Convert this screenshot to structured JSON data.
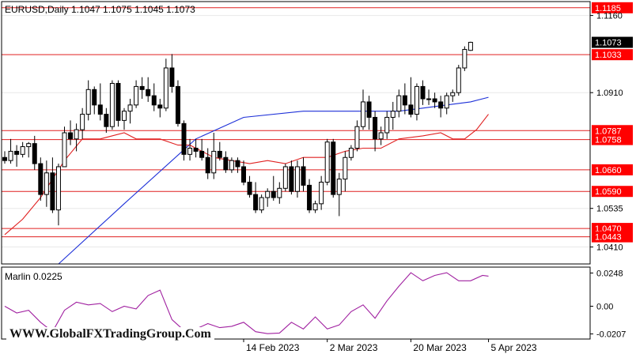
{
  "chart_data": [
    {
      "type": "candlestick",
      "title": "EURUSD,Daily  1.1047  1.1075  1.1045  1.1073",
      "symbol": "EURUSD",
      "timeframe": "Daily",
      "header_values": [
        "1.1047",
        "1.1075",
        "1.1045",
        "1.1073"
      ],
      "ylim": [
        1.0355,
        1.1205
      ],
      "y_ticks": [
        "1.1160",
        "1.0910",
        "1.0535",
        "1.0410"
      ],
      "x_tick_labels": [
        "14 Feb 2023",
        "2 Mar 2023",
        "20 Mar 2023",
        "5 Apr 2023"
      ],
      "x_tick_index": [
        40,
        54,
        68,
        81
      ],
      "current_price": "1.1073",
      "levels": [
        "1.1185",
        "1.1033",
        "1.0787",
        "1.0758",
        "1.0660",
        "1.0590",
        "1.0470",
        "1.0443"
      ],
      "ohlc": [
        [
          1.07,
          1.072,
          1.068,
          1.069
        ],
        [
          1.069,
          1.076,
          1.068,
          1.072
        ],
        [
          1.072,
          1.074,
          1.067,
          1.071
        ],
        [
          1.071,
          1.075,
          1.07,
          1.0735
        ],
        [
          1.0735,
          1.075,
          1.07,
          1.0745
        ],
        [
          1.0745,
          1.077,
          1.066,
          1.068
        ],
        [
          1.068,
          1.07,
          1.056,
          1.058
        ],
        [
          1.058,
          1.069,
          1.054,
          1.065
        ],
        [
          1.065,
          1.07,
          1.052,
          1.053
        ],
        [
          1.053,
          1.068,
          1.048,
          1.067
        ],
        [
          1.067,
          1.08,
          1.067,
          1.078
        ],
        [
          1.078,
          1.082,
          1.074,
          1.076
        ],
        [
          1.076,
          1.081,
          1.072,
          1.079
        ],
        [
          1.079,
          1.086,
          1.076,
          1.084
        ],
        [
          1.084,
          1.095,
          1.082,
          1.092
        ],
        [
          1.092,
          1.093,
          1.084,
          1.087
        ],
        [
          1.087,
          1.094,
          1.082,
          1.084
        ],
        [
          1.084,
          1.086,
          1.078,
          1.08
        ],
        [
          1.08,
          1.095,
          1.079,
          1.094
        ],
        [
          1.094,
          1.095,
          1.08,
          1.082
        ],
        [
          1.082,
          1.086,
          1.079,
          1.085
        ],
        [
          1.085,
          1.089,
          1.081,
          1.087
        ],
        [
          1.087,
          1.095,
          1.086,
          1.093
        ],
        [
          1.093,
          1.096,
          1.089,
          1.092
        ],
        [
          1.092,
          1.096,
          1.088,
          1.09
        ],
        [
          1.09,
          1.094,
          1.085,
          1.087
        ],
        [
          1.087,
          1.089,
          1.083,
          1.086
        ],
        [
          1.086,
          1.102,
          1.085,
          1.099
        ],
        [
          1.099,
          1.1035,
          1.091,
          1.093
        ],
        [
          1.093,
          1.095,
          1.08,
          1.081
        ],
        [
          1.081,
          1.082,
          1.069,
          1.071
        ],
        [
          1.071,
          1.076,
          1.069,
          1.073
        ],
        [
          1.073,
          1.076,
          1.07,
          1.072
        ],
        [
          1.072,
          1.076,
          1.069,
          1.07
        ],
        [
          1.07,
          1.073,
          1.063,
          1.065
        ],
        [
          1.065,
          1.078,
          1.063,
          1.072
        ],
        [
          1.072,
          1.075,
          1.069,
          1.07
        ],
        [
          1.07,
          1.072,
          1.065,
          1.066
        ],
        [
          1.066,
          1.07,
          1.065,
          1.069
        ],
        [
          1.069,
          1.07,
          1.065,
          1.067
        ],
        [
          1.067,
          1.069,
          1.061,
          1.062
        ],
        [
          1.062,
          1.064,
          1.057,
          1.058
        ],
        [
          1.058,
          1.062,
          1.052,
          1.053
        ],
        [
          1.053,
          1.058,
          1.052,
          1.057
        ],
        [
          1.057,
          1.06,
          1.054,
          1.059
        ],
        [
          1.059,
          1.064,
          1.056,
          1.057
        ],
        [
          1.057,
          1.062,
          1.055,
          1.06
        ],
        [
          1.06,
          1.068,
          1.059,
          1.067
        ],
        [
          1.067,
          1.069,
          1.058,
          1.059
        ],
        [
          1.059,
          1.069,
          1.057,
          1.067
        ],
        [
          1.067,
          1.07,
          1.059,
          1.061
        ],
        [
          1.061,
          1.063,
          1.052,
          1.053
        ],
        [
          1.053,
          1.056,
          1.052,
          1.055
        ],
        [
          1.055,
          1.064,
          1.053,
          1.062
        ],
        [
          1.062,
          1.076,
          1.061,
          1.075
        ],
        [
          1.075,
          1.076,
          1.057,
          1.058
        ],
        [
          1.058,
          1.065,
          1.051,
          1.063
        ],
        [
          1.063,
          1.072,
          1.059,
          1.07
        ],
        [
          1.07,
          1.074,
          1.069,
          1.073
        ],
        [
          1.073,
          1.082,
          1.072,
          1.08
        ],
        [
          1.08,
          1.092,
          1.079,
          1.088
        ],
        [
          1.088,
          1.09,
          1.079,
          1.083
        ],
        [
          1.083,
          1.085,
          1.072,
          1.076
        ],
        [
          1.076,
          1.08,
          1.074,
          1.078
        ],
        [
          1.078,
          1.085,
          1.076,
          1.083
        ],
        [
          1.083,
          1.088,
          1.079,
          1.085
        ],
        [
          1.085,
          1.092,
          1.083,
          1.09
        ],
        [
          1.09,
          1.094,
          1.084,
          1.087
        ],
        [
          1.087,
          1.096,
          1.083,
          1.084
        ],
        [
          1.084,
          1.094,
          1.082,
          1.093
        ],
        [
          1.093,
          1.095,
          1.087,
          1.089
        ],
        [
          1.089,
          1.092,
          1.087,
          1.089
        ],
        [
          1.089,
          1.091,
          1.086,
          1.088
        ],
        [
          1.088,
          1.09,
          1.083,
          1.086
        ],
        [
          1.086,
          1.091,
          1.084,
          1.09
        ],
        [
          1.09,
          1.092,
          1.088,
          1.091
        ],
        [
          1.091,
          1.1,
          1.09,
          1.099
        ],
        [
          1.099,
          1.106,
          1.098,
          1.105
        ],
        [
          1.1047,
          1.1075,
          1.1045,
          1.1073
        ]
      ],
      "ma_blue": [
        [
          9,
          1.0355
        ],
        [
          20,
          1.055
        ],
        [
          32,
          1.076
        ],
        [
          40,
          1.083
        ],
        [
          50,
          1.085
        ],
        [
          60,
          1.085
        ],
        [
          66,
          1.085
        ],
        [
          70,
          1.086
        ],
        [
          74,
          1.087
        ],
        [
          78,
          1.088
        ],
        [
          81,
          1.0895
        ]
      ],
      "ma_red": [
        [
          0,
          1.045
        ],
        [
          3,
          1.05
        ],
        [
          6,
          1.057
        ],
        [
          10,
          1.069
        ],
        [
          13,
          1.076
        ],
        [
          16,
          1.076
        ],
        [
          20,
          1.078
        ],
        [
          22,
          1.076
        ],
        [
          26,
          1.076
        ],
        [
          29,
          1.074
        ],
        [
          31,
          1.074
        ],
        [
          35,
          1.07
        ],
        [
          38,
          1.069
        ],
        [
          41,
          1.068
        ],
        [
          44,
          1.069
        ],
        [
          47,
          1.068
        ],
        [
          50,
          1.07
        ],
        [
          54,
          1.07
        ],
        [
          57,
          1.072
        ],
        [
          60,
          1.073
        ],
        [
          63,
          1.073
        ],
        [
          66,
          1.076
        ],
        [
          70,
          1.077
        ],
        [
          73,
          1.078
        ],
        [
          75,
          1.076
        ],
        [
          77,
          1.076
        ],
        [
          79,
          1.079
        ],
        [
          81,
          1.084
        ]
      ],
      "indicator": {
        "name": "Marlin",
        "label": "Marlin 0.0225",
        "value": "0.0225",
        "ylim": [
          -0.0245,
          0.0292
        ],
        "y_ticks": [
          "0.0248",
          "0.00",
          "-0.0207"
        ],
        "values": [
          [
            0,
            0.0
          ],
          [
            2,
            -0.005
          ],
          [
            4,
            -0.003
          ],
          [
            6,
            -0.012
          ],
          [
            8,
            -0.019
          ],
          [
            10,
            -0.003
          ],
          [
            12,
            0.003
          ],
          [
            14,
            0.001
          ],
          [
            16,
            0.002
          ],
          [
            18,
            -0.004
          ],
          [
            20,
            0.0
          ],
          [
            22,
            -0.002
          ],
          [
            24,
            0.008
          ],
          [
            26,
            0.012
          ],
          [
            28,
            -0.01
          ],
          [
            30,
            -0.018
          ],
          [
            32,
            -0.017
          ],
          [
            34,
            -0.013
          ],
          [
            36,
            -0.016
          ],
          [
            38,
            -0.015
          ],
          [
            40,
            -0.012
          ],
          [
            42,
            -0.019
          ],
          [
            44,
            -0.0205
          ],
          [
            46,
            -0.02
          ],
          [
            48,
            -0.012
          ],
          [
            50,
            -0.017
          ],
          [
            52,
            -0.008
          ],
          [
            54,
            -0.017
          ],
          [
            56,
            -0.014
          ],
          [
            58,
            -0.004
          ],
          [
            60,
            0.001
          ],
          [
            62,
            -0.009
          ],
          [
            64,
            0.004
          ],
          [
            66,
            0.015
          ],
          [
            68,
            0.025
          ],
          [
            70,
            0.019
          ],
          [
            72,
            0.023
          ],
          [
            74,
            0.025
          ],
          [
            76,
            0.019
          ],
          [
            78,
            0.019
          ],
          [
            80,
            0.023
          ],
          [
            81,
            0.0225
          ]
        ]
      }
    }
  ],
  "watermark": "WWW.GlobalFXTradingGroup.Com",
  "colors": {
    "background": "#ffffff",
    "frame": "#000000",
    "level_line": "#e02020",
    "level_label_bg": "#ff0000",
    "price_label_bg": "#000000",
    "ma_blue": "#1c2fd8",
    "ma_red": "#e02020",
    "indicator": "#a020a0",
    "candle": "#000000",
    "bull_fill": "#ffffff",
    "bear_fill": "#000000"
  }
}
